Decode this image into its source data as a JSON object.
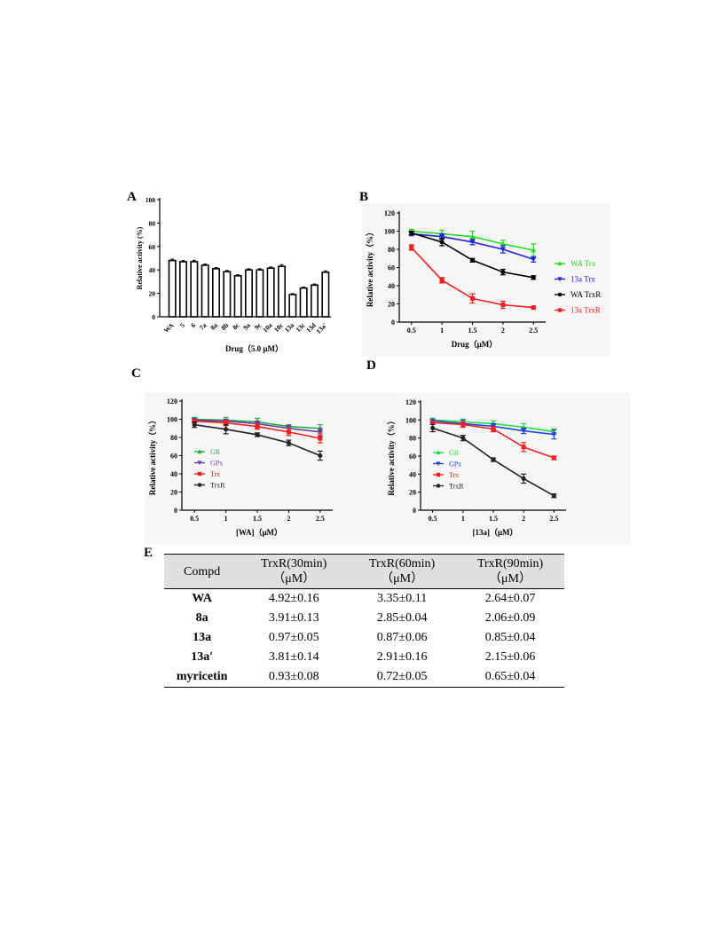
{
  "panels": {
    "a": "A",
    "b": "B",
    "c": "C",
    "d": "D",
    "e": "E"
  },
  "chart_data": [
    {
      "panel": "A",
      "type": "bar",
      "xlabel": "Drug（5.0 μM）",
      "ylabel": "Relative activity (%)",
      "ylim": [
        0,
        100
      ],
      "yticks": [
        0,
        20,
        40,
        60,
        80,
        100
      ],
      "categories": [
        "WA",
        "5",
        "6",
        "7a",
        "8a",
        "8b",
        "8c",
        "9a",
        "9c",
        "10a",
        "10c",
        "13a",
        "13c",
        "13d",
        "13a'"
      ],
      "values": [
        48,
        47,
        47,
        44,
        41,
        38.5,
        35,
        40,
        40,
        41.5,
        43,
        19,
        24.5,
        27,
        38
      ],
      "errors": [
        1.2,
        1,
        1.2,
        1,
        1,
        1,
        0.8,
        1,
        1,
        1,
        1.5,
        0.8,
        0.8,
        1,
        1.2
      ],
      "color": "#000000"
    },
    {
      "panel": "B",
      "type": "line",
      "xlabel": "Drug（μM）",
      "ylabel": "Relative activity（%）",
      "ylim": [
        0,
        120
      ],
      "yticks": [
        0,
        20,
        40,
        60,
        80,
        100,
        120
      ],
      "x": [
        0.5,
        1,
        1.5,
        2,
        2.5
      ],
      "xticks": [
        "0.5",
        "1",
        "1.5",
        "2",
        "2.5"
      ],
      "legend": "right",
      "series": [
        {
          "name": "WA Trx",
          "marker": "tri-up",
          "color": "#22dd22",
          "values": [
            100,
            97,
            94,
            86,
            79
          ],
          "errors": [
            2,
            4,
            6,
            4,
            7
          ]
        },
        {
          "name": "13a Trx",
          "marker": "tri-down",
          "color": "#2222dd",
          "values": [
            97,
            94,
            88,
            80,
            69
          ],
          "errors": [
            2,
            3,
            3,
            4,
            3
          ]
        },
        {
          "name": "WA TrxR",
          "marker": "circle",
          "color": "#000000",
          "values": [
            98,
            88,
            68,
            55,
            49
          ],
          "errors": [
            2,
            4,
            2,
            3,
            2
          ]
        },
        {
          "name": "13a TrxR",
          "marker": "square",
          "color": "#ee2222",
          "values": [
            82,
            46,
            26,
            19,
            16
          ],
          "errors": [
            3,
            3,
            5,
            4,
            1
          ]
        }
      ]
    },
    {
      "panel": "C",
      "type": "line",
      "xlabel": "[WA]（μM）",
      "ylabel": "Relative activity（%）",
      "ylim": [
        0,
        120
      ],
      "yticks": [
        0,
        20,
        40,
        60,
        80,
        100,
        120
      ],
      "x": [
        0.5,
        1,
        1.5,
        2,
        2.5
      ],
      "xticks": [
        "0.5",
        "1",
        "1.5",
        "2",
        "2.5"
      ],
      "legend": "left",
      "series": [
        {
          "name": "GR",
          "marker": "tri-up",
          "color": "#22aa44",
          "values": [
            100,
            99,
            97,
            92,
            90
          ],
          "errors": [
            2,
            3,
            4,
            2,
            4
          ]
        },
        {
          "name": "GPx",
          "marker": "tri-down",
          "color": "#6a3aa0",
          "values": [
            99,
            98,
            95,
            90,
            86
          ],
          "errors": [
            2,
            2,
            3,
            3,
            4
          ]
        },
        {
          "name": "Trx",
          "marker": "square",
          "color": "#ee2222",
          "values": [
            98,
            96,
            92,
            86,
            79
          ],
          "errors": [
            2,
            3,
            3,
            4,
            5
          ]
        },
        {
          "name": "TrxR",
          "marker": "circle",
          "color": "#222222",
          "values": [
            94,
            89,
            83,
            74,
            60
          ],
          "errors": [
            3,
            5,
            2,
            3,
            5
          ]
        }
      ]
    },
    {
      "panel": "D",
      "type": "line",
      "xlabel": "[13a]（μM）",
      "ylabel": "Relative activity（%）",
      "ylim": [
        0,
        120
      ],
      "yticks": [
        0,
        20,
        40,
        60,
        80,
        100,
        120
      ],
      "x": [
        0.5,
        1,
        1.5,
        2,
        2.5
      ],
      "xticks": [
        "0.5",
        "1",
        "1.5",
        "2",
        "2.5"
      ],
      "legend": "left",
      "series": [
        {
          "name": "GR",
          "marker": "tri-up",
          "color": "#22dd44",
          "values": [
            100,
            98,
            96,
            92,
            87
          ],
          "errors": [
            2,
            3,
            3,
            4,
            3
          ]
        },
        {
          "name": "GPx",
          "marker": "tri-down",
          "color": "#2244dd",
          "values": [
            99,
            96,
            93,
            88,
            84
          ],
          "errors": [
            2,
            4,
            3,
            3,
            5
          ]
        },
        {
          "name": "Trx",
          "marker": "square",
          "color": "#ee2222",
          "values": [
            97,
            95,
            90,
            70,
            58
          ],
          "errors": [
            2,
            3,
            3,
            5,
            2
          ]
        },
        {
          "name": "TrxR",
          "marker": "circle",
          "color": "#222222",
          "values": [
            91,
            80,
            56,
            35,
            16
          ],
          "errors": [
            4,
            3,
            2,
            5,
            2
          ]
        }
      ]
    }
  ],
  "table": {
    "headers": [
      "Compd",
      "TrxR(30min)",
      "TrxR(60min)",
      "TrxR(90min)"
    ],
    "units": [
      "",
      "（μM）",
      "（μM）",
      "（μM）"
    ],
    "rows": [
      [
        "WA",
        "4.92±0.16",
        "3.35±0.11",
        "2.64±0.07"
      ],
      [
        "8a",
        "3.91±0.13",
        "2.85±0.04",
        "2.06±0.09"
      ],
      [
        "13a",
        "0.97±0.05",
        "0.87±0.06",
        "0.85±0.04"
      ],
      [
        "13a′",
        "3.81±0.14",
        "2.91±0.16",
        "2.15±0.06"
      ],
      [
        "myricetin",
        "0.93±0.08",
        "0.72±0.05",
        "0.65±0.04"
      ]
    ]
  }
}
